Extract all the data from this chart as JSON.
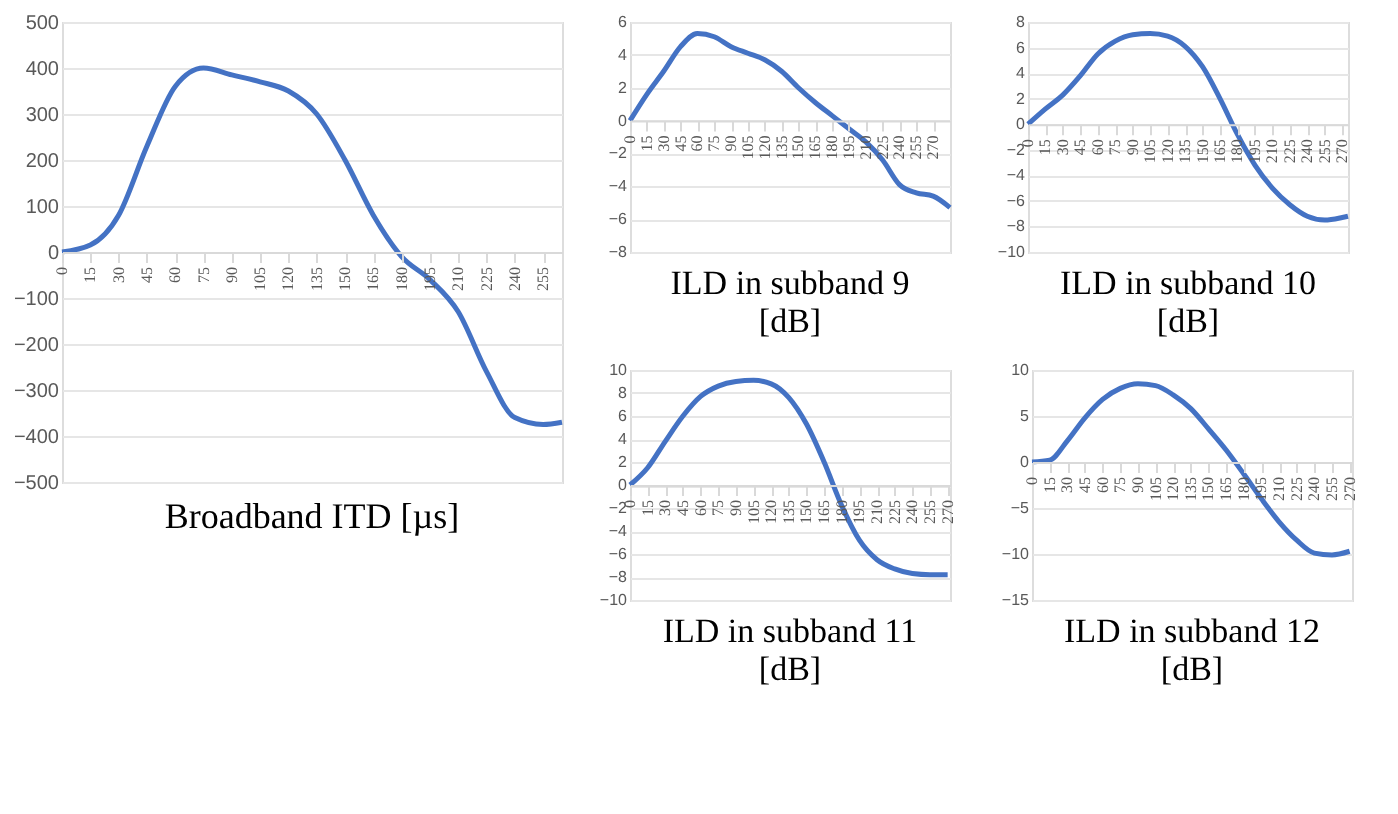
{
  "chart_data": [
    {
      "type": "line",
      "title": "Broadband ITD [µs]",
      "x": [
        0,
        15,
        30,
        45,
        60,
        75,
        90,
        105,
        120,
        135,
        150,
        165,
        180,
        195,
        210,
        225,
        240,
        255,
        265
      ],
      "series": [
        {
          "color": "#4472c4",
          "values": [
            0,
            15,
            80,
            230,
            360,
            400,
            385,
            370,
            350,
            300,
            200,
            80,
            -10,
            -60,
            -130,
            -260,
            -360,
            -375,
            -370
          ]
        }
      ],
      "xlim": [
        0,
        265
      ],
      "xticks": [
        0,
        15,
        30,
        45,
        60,
        75,
        90,
        105,
        120,
        135,
        150,
        165,
        180,
        195,
        210,
        225,
        240,
        255
      ],
      "ylim": [
        -500,
        500
      ],
      "yticks": [
        -500,
        -400,
        -300,
        -200,
        -100,
        0,
        100,
        200,
        300,
        400,
        500
      ],
      "grid": "y"
    },
    {
      "type": "line",
      "title": "ILD in subband 9 [dB]",
      "x": [
        0,
        15,
        30,
        45,
        60,
        75,
        90,
        105,
        120,
        135,
        150,
        165,
        180,
        195,
        210,
        225,
        240,
        255,
        270,
        285
      ],
      "series": [
        {
          "color": "#4472c4",
          "values": [
            0,
            1.6,
            3,
            4.5,
            5.3,
            5.1,
            4.5,
            4.1,
            3.7,
            3,
            2,
            1.1,
            0.3,
            -0.5,
            -1.3,
            -2.4,
            -3.9,
            -4.4,
            -4.6,
            -5.3
          ]
        }
      ],
      "xlim": [
        0,
        285
      ],
      "xticks": [
        0,
        15,
        30,
        45,
        60,
        75,
        90,
        105,
        120,
        135,
        150,
        165,
        180,
        195,
        210,
        225,
        240,
        255,
        270
      ],
      "ylim": [
        -8,
        6
      ],
      "yticks": [
        -8,
        -6,
        -4,
        -2,
        0,
        2,
        4,
        6
      ],
      "grid": "y"
    },
    {
      "type": "line",
      "title": "ILD in subband 10 [dB]",
      "x": [
        0,
        15,
        30,
        45,
        60,
        75,
        90,
        105,
        120,
        135,
        150,
        165,
        180,
        195,
        210,
        225,
        240,
        255,
        270,
        275
      ],
      "series": [
        {
          "color": "#4472c4",
          "values": [
            0,
            1.2,
            2.3,
            3.8,
            5.5,
            6.5,
            7,
            7.1,
            6.9,
            6.1,
            4.5,
            2,
            -0.8,
            -3.2,
            -5,
            -6.3,
            -7.2,
            -7.5,
            -7.3,
            -7.2
          ]
        }
      ],
      "xlim": [
        0,
        275
      ],
      "xticks": [
        0,
        15,
        30,
        45,
        60,
        75,
        90,
        105,
        120,
        135,
        150,
        165,
        180,
        195,
        210,
        225,
        240,
        255,
        270
      ],
      "ylim": [
        -10,
        8
      ],
      "yticks": [
        -10,
        -8,
        -6,
        -4,
        -2,
        0,
        2,
        4,
        6,
        8
      ],
      "grid": "y"
    },
    {
      "type": "line",
      "title": "ILD in subband 11 [dB]",
      "x": [
        0,
        15,
        30,
        45,
        60,
        75,
        90,
        105,
        120,
        135,
        150,
        165,
        180,
        195,
        210,
        225,
        240,
        255,
        270
      ],
      "series": [
        {
          "color": "#4472c4",
          "values": [
            0,
            1.5,
            3.8,
            6,
            7.7,
            8.6,
            9,
            9.1,
            8.8,
            7.6,
            5.3,
            2,
            -1.8,
            -4.8,
            -6.5,
            -7.3,
            -7.7,
            -7.8,
            -7.8
          ]
        }
      ],
      "xlim": [
        0,
        272
      ],
      "xticks": [
        0,
        15,
        30,
        45,
        60,
        75,
        90,
        105,
        120,
        135,
        150,
        165,
        180,
        195,
        210,
        225,
        240,
        255,
        270
      ],
      "ylim": [
        -10,
        10
      ],
      "yticks": [
        -10,
        -8,
        -6,
        -4,
        -2,
        0,
        2,
        4,
        6,
        8,
        10
      ],
      "grid": "y"
    },
    {
      "type": "line",
      "title": "ILD in subband 12 [dB]",
      "x": [
        0,
        15,
        30,
        45,
        60,
        75,
        90,
        105,
        120,
        135,
        150,
        165,
        180,
        195,
        210,
        225,
        240,
        255,
        270
      ],
      "series": [
        {
          "color": "#4472c4",
          "values": [
            0,
            0.2,
            2.3,
            4.8,
            6.8,
            8,
            8.5,
            8.3,
            7.3,
            5.8,
            3.6,
            1.3,
            -1.3,
            -4,
            -6.5,
            -8.5,
            -9.9,
            -10.1,
            -9.7
          ]
        }
      ],
      "xlim": [
        0,
        272
      ],
      "xticks": [
        0,
        15,
        30,
        45,
        60,
        75,
        90,
        105,
        120,
        135,
        150,
        165,
        180,
        195,
        210,
        225,
        240,
        255,
        270
      ],
      "ylim": [
        -15,
        10
      ],
      "yticks": [
        -15,
        -10,
        -5,
        0,
        5,
        10
      ],
      "grid": "y"
    }
  ]
}
